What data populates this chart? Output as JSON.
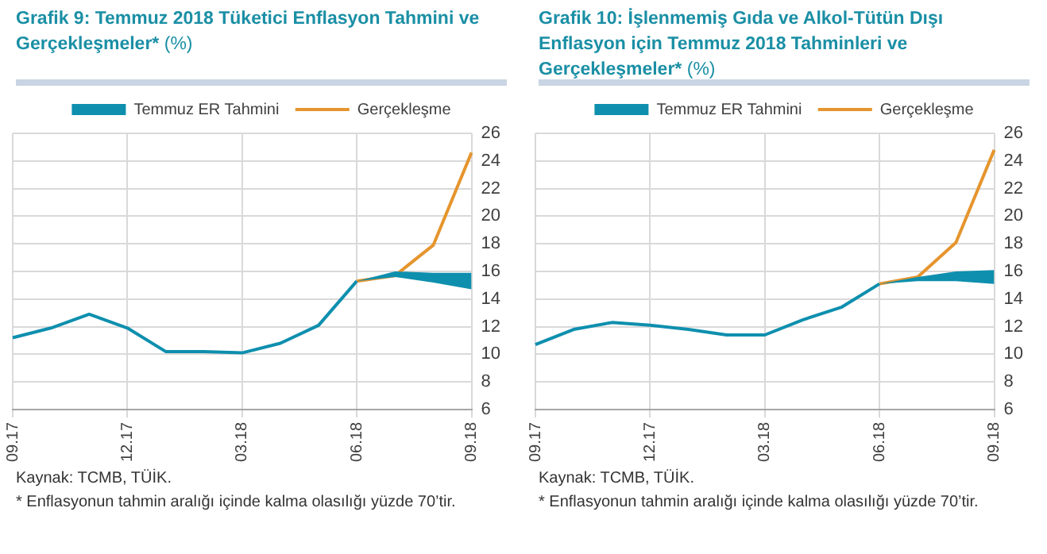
{
  "chart_data": [
    {
      "type": "line",
      "title": "Grafik 9: Temmuz 2018 Tüketici Enflasyon Tahmini ve Gerçekleşmeler*",
      "ylabel": "(%)",
      "categories": [
        "09.17",
        null,
        null,
        "12.17",
        null,
        null,
        "03.18",
        null,
        null,
        "06.18",
        null,
        null,
        "09.18"
      ],
      "series": [
        {
          "name": "Temmuz ER Tahmini",
          "color": "#0e8fae",
          "values": [
            11.2,
            11.9,
            12.9,
            11.9,
            10.2,
            10.2,
            10.1,
            10.8,
            12.1,
            15.3,
            null,
            null,
            null
          ],
          "lower": [
            null,
            null,
            null,
            null,
            null,
            null,
            null,
            null,
            null,
            15.3,
            15.6,
            15.2,
            14.7
          ],
          "upper": [
            null,
            null,
            null,
            null,
            null,
            null,
            null,
            null,
            null,
            15.3,
            16.0,
            15.9,
            15.9
          ]
        },
        {
          "name": "Gerçekleşme",
          "color": "#e5952e",
          "values": [
            null,
            null,
            null,
            null,
            null,
            null,
            null,
            null,
            null,
            15.3,
            15.7,
            17.9,
            24.6
          ]
        }
      ],
      "ylim": [
        6,
        26
      ],
      "yticks": [
        6,
        8,
        10,
        12,
        14,
        16,
        18,
        20,
        22,
        24,
        26
      ],
      "grid": true,
      "legend": "top",
      "marker": "none",
      "line_style": "solid",
      "annotations": [
        "Kaynak: TCMB, TÜİK.",
        "* Enflasyonun tahmin aralığı içinde kalma olasılığı yüzde 70’tir."
      ]
    },
    {
      "type": "line",
      "title": "Grafik 10: İşlenmemiş Gıda ve Alkol-Tütün Dışı Enflasyon için Temmuz 2018 Tahminleri ve Gerçekleşmeler*",
      "ylabel": "(%)",
      "categories": [
        "09.17",
        null,
        null,
        "12.17",
        null,
        null,
        "03.18",
        null,
        null,
        "06.18",
        null,
        null,
        "09.18"
      ],
      "series": [
        {
          "name": "Temmuz ER Tahmini",
          "color": "#0e8fae",
          "values": [
            10.7,
            11.8,
            12.3,
            12.1,
            11.8,
            11.4,
            11.4,
            12.5,
            13.4,
            15.1,
            null,
            null,
            null
          ],
          "lower": [
            null,
            null,
            null,
            null,
            null,
            null,
            null,
            null,
            null,
            15.1,
            15.3,
            15.3,
            15.1
          ],
          "upper": [
            null,
            null,
            null,
            null,
            null,
            null,
            null,
            null,
            null,
            15.1,
            15.6,
            16.0,
            16.1
          ]
        },
        {
          "name": "Gerçekleşme",
          "color": "#e5952e",
          "values": [
            null,
            null,
            null,
            null,
            null,
            null,
            null,
            null,
            null,
            15.1,
            15.6,
            18.1,
            24.8
          ]
        }
      ],
      "ylim": [
        6,
        26
      ],
      "yticks": [
        6,
        8,
        10,
        12,
        14,
        16,
        18,
        20,
        22,
        24,
        26
      ],
      "grid": true,
      "legend": "top",
      "marker": "none",
      "line_style": "solid",
      "annotations": [
        "Kaynak: TCMB, TÜİK.",
        "* Enflasyonun tahmin aralığı içinde kalma olasılığı yüzde 70’tir."
      ]
    }
  ]
}
